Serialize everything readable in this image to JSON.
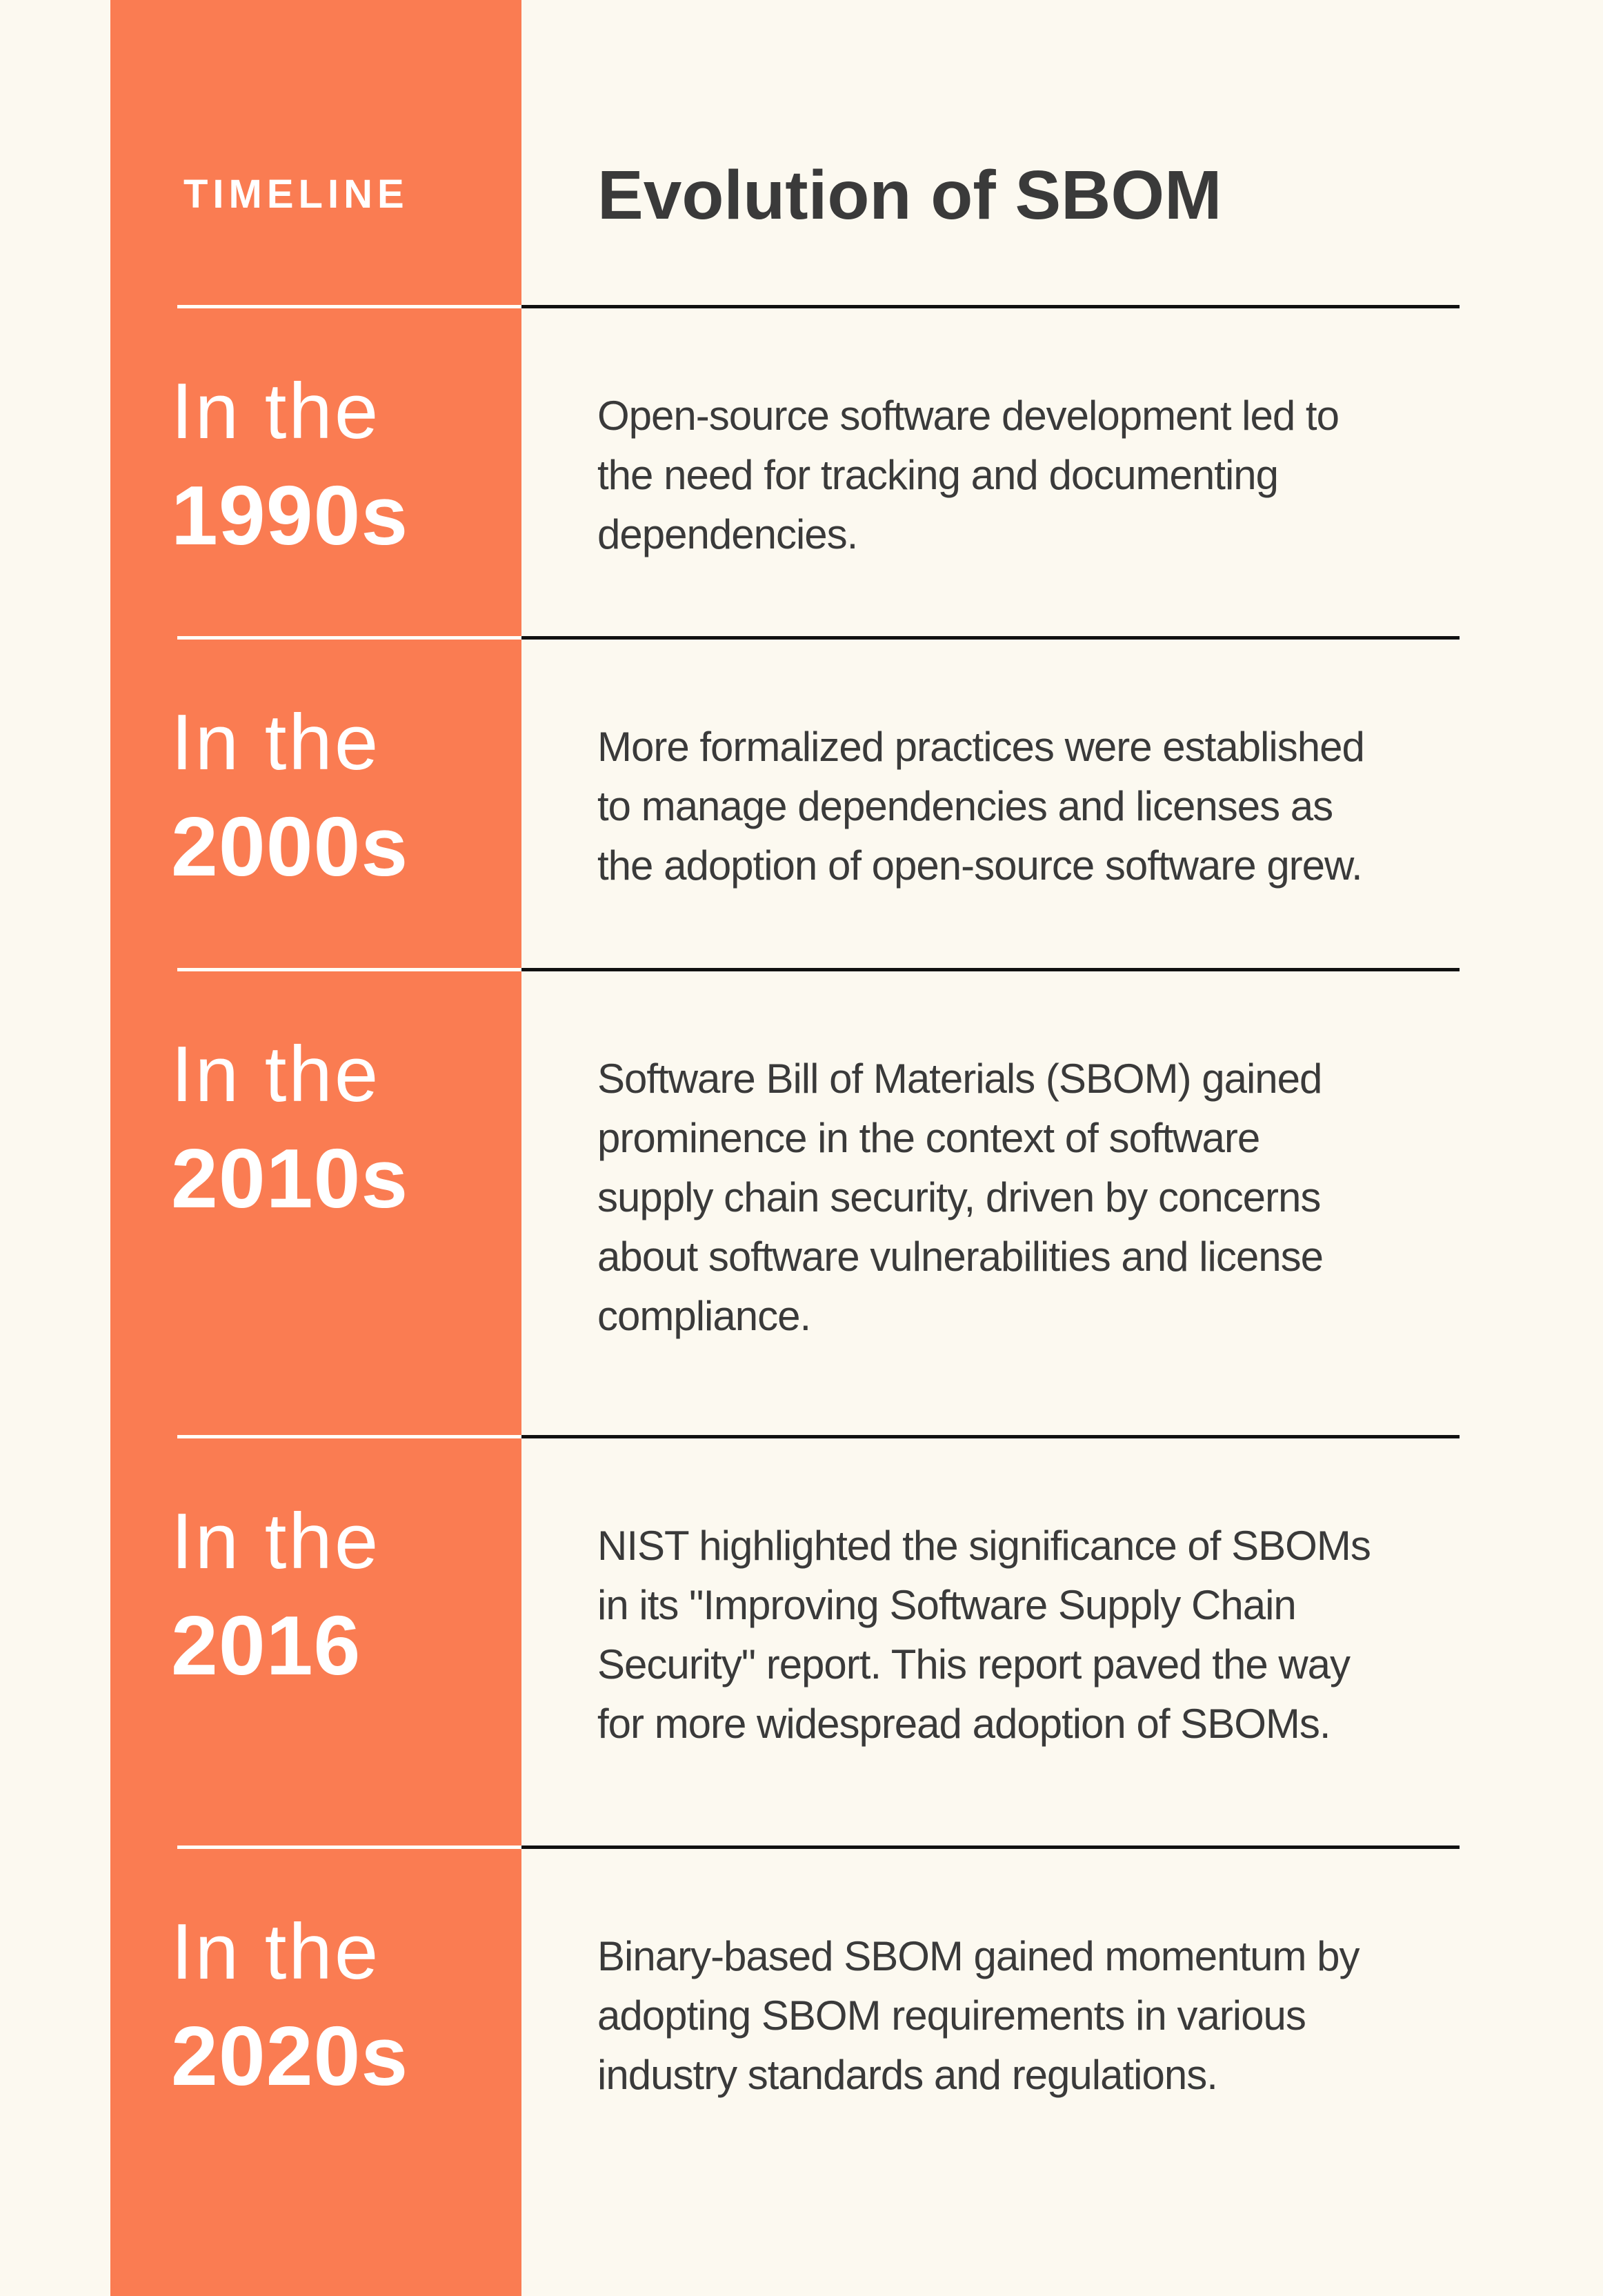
{
  "theme": {
    "accent_orange": "#FA7C52",
    "page_cream": "#FCF9F0",
    "line_black": "#111111",
    "line_white": "#FFFEF8",
    "text_dark": "#3A3A3A",
    "text_white": "#FFFFFF"
  },
  "header": {
    "kicker": "TIMELINE",
    "title": "Evolution of SBOM"
  },
  "entries": [
    {
      "era_prefix": "In the",
      "era": "1990s",
      "description": "Open-source software development led to\nthe need for tracking and documenting\ndependencies."
    },
    {
      "era_prefix": "In the",
      "era": "2000s",
      "description": "More formalized practices were established\nto manage dependencies and licenses as\nthe adoption of open-source software grew."
    },
    {
      "era_prefix": "In the",
      "era": "2010s",
      "description": "Software Bill of Materials (SBOM) gained\nprominence in the context of software\nsupply chain security, driven by concerns\nabout software vulnerabilities and license\ncompliance."
    },
    {
      "era_prefix": "In the",
      "era": "2016",
      "description": "NIST highlighted the significance of SBOMs\nin its \"Improving Software Supply Chain\nSecurity\" report. This report paved the way\nfor more widespread adoption of SBOMs."
    },
    {
      "era_prefix": "In the",
      "era": "2020s",
      "description": "Binary-based SBOM gained momentum by\nadopting SBOM requirements in various\nindustry standards and regulations."
    }
  ]
}
